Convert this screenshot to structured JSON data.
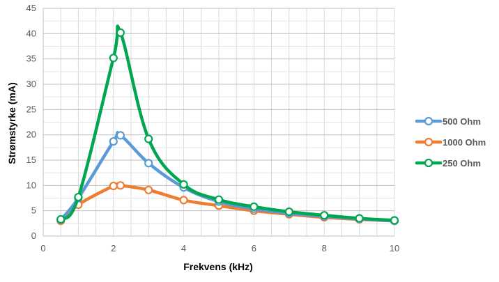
{
  "chart_data": {
    "type": "scatter",
    "title": "",
    "xlabel": "Frekvens (kHz)",
    "ylabel": "Strømstyrke (mA)",
    "xlim": [
      0,
      10
    ],
    "ylim": [
      0,
      45
    ],
    "x_ticks": [
      "0",
      "2",
      "4",
      "6",
      "8",
      "10"
    ],
    "y_ticks": [
      "0",
      "5",
      "10",
      "15",
      "20",
      "25",
      "30",
      "35",
      "40",
      "45"
    ],
    "grid": true,
    "smooth_lines": true,
    "markers": "hollow-circle",
    "legend_position": "right",
    "series": [
      {
        "name": "500 Ohm",
        "color": "#5B9BD5",
        "points": [
          [
            0.5,
            3.2
          ],
          [
            1,
            7.5
          ],
          [
            2,
            18.7
          ],
          [
            2.2,
            19.9
          ],
          [
            3,
            14.4
          ],
          [
            4,
            9.6
          ],
          [
            5,
            6.8
          ],
          [
            6,
            5.4
          ],
          [
            7,
            4.5
          ],
          [
            8,
            3.9
          ],
          [
            9,
            3.4
          ],
          [
            10,
            3.0
          ]
        ]
      },
      {
        "name": "1000 Ohm",
        "color": "#ED7D31",
        "points": [
          [
            0.5,
            3.0
          ],
          [
            1,
            6.2
          ],
          [
            2,
            9.9
          ],
          [
            2.2,
            10.0
          ],
          [
            3,
            9.1
          ],
          [
            4,
            7.1
          ],
          [
            5,
            6.0
          ],
          [
            6,
            5.0
          ],
          [
            7,
            4.3
          ],
          [
            8,
            3.7
          ],
          [
            9,
            3.3
          ],
          [
            10,
            3.0
          ]
        ]
      },
      {
        "name": "250 Ohm",
        "color": "#00A650",
        "points": [
          [
            0.5,
            3.3
          ],
          [
            1,
            7.7
          ],
          [
            2,
            35.2
          ],
          [
            2.2,
            40.2
          ],
          [
            3,
            19.2
          ],
          [
            4,
            10.2
          ],
          [
            5,
            7.2
          ],
          [
            6,
            5.8
          ],
          [
            7,
            4.8
          ],
          [
            8,
            4.1
          ],
          [
            9,
            3.5
          ],
          [
            10,
            3.1
          ]
        ]
      }
    ]
  }
}
